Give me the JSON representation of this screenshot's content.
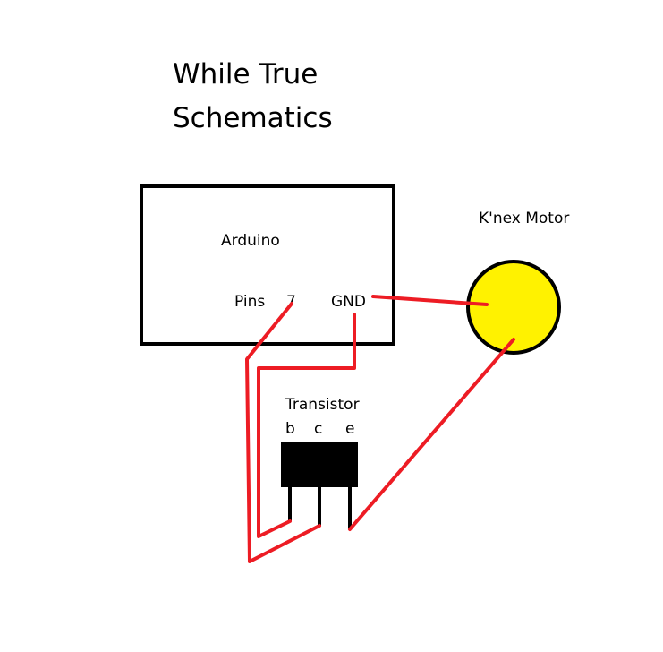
{
  "title": {
    "line1": "While True",
    "line2": "Schematics"
  },
  "arduino": {
    "label": "Arduino",
    "pins_label": "Pins",
    "pin_number": "7",
    "gnd_label": "GND"
  },
  "motor": {
    "label": "K'nex Motor"
  },
  "transistor": {
    "label": "Transistor",
    "pin_b": "b",
    "pin_c": "c",
    "pin_e": "e"
  },
  "colors": {
    "wire": "#ed1c24",
    "motor_fill": "#fff200",
    "outline": "#000000",
    "background": "#ffffff"
  }
}
